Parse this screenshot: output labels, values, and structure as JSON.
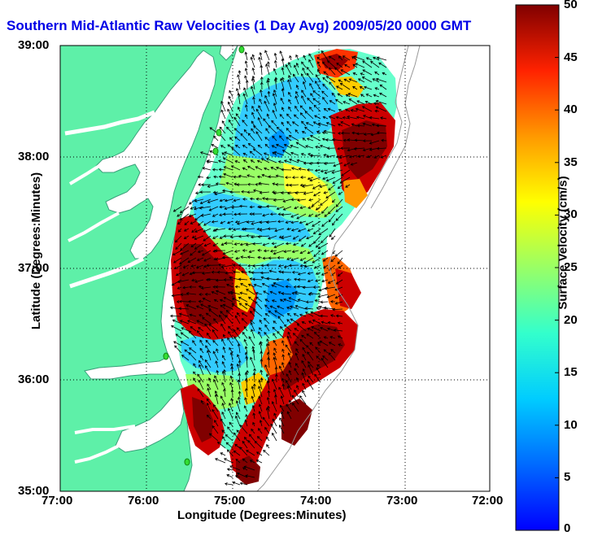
{
  "title": "Southern Mid-Atlantic Raw Velocities (1 Day Avg) 2009/05/20 0000 GMT",
  "map": {
    "xlabel": "Longitude (Degrees:Minutes)",
    "ylabel": "Latitude (Degrees:Minutes)",
    "x_ticks": [
      "77:00",
      "76:00",
      "75:00",
      "74:00",
      "73:00",
      "72:00"
    ],
    "y_ticks": [
      "39:00",
      "38:00",
      "37:00",
      "36:00",
      "35:00"
    ],
    "lon_range": [
      -77,
      -72
    ],
    "lat_range": [
      35,
      39
    ],
    "grid": true,
    "land_color": "#5ef0a8",
    "water_color": "#ffffff",
    "coastline_color": "#4a8a6a",
    "station_color": "#33dd33"
  },
  "colorbar": {
    "label": "Surface Velocity (cm/s)",
    "ticks": [
      "0",
      "5",
      "10",
      "15",
      "20",
      "25",
      "30",
      "35",
      "40",
      "45",
      "50"
    ],
    "range": [
      0,
      50
    ],
    "colormap": "jet"
  }
}
